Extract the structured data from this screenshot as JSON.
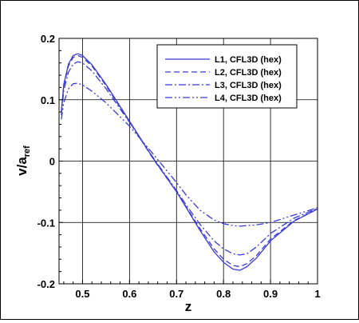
{
  "chart_data": {
    "type": "line",
    "xlabel": "z",
    "ylabel": {
      "main": "v/a",
      "sub": "ref"
    },
    "xlim": [
      0.45,
      1.0
    ],
    "ylim": [
      -0.2,
      0.2
    ],
    "xticks": [
      {
        "v": 0.5,
        "t": "0.5"
      },
      {
        "v": 0.6,
        "t": "0.6"
      },
      {
        "v": 0.7,
        "t": "0.7"
      },
      {
        "v": 0.8,
        "t": "0.8"
      },
      {
        "v": 0.9,
        "t": "0.9"
      },
      {
        "v": 1.0,
        "t": "1"
      }
    ],
    "yticks": [
      {
        "v": -0.2,
        "t": "-0.2"
      },
      {
        "v": -0.1,
        "t": "-0.1"
      },
      {
        "v": 0,
        "t": "0"
      },
      {
        "v": 0.1,
        "t": "0.1"
      },
      {
        "v": 0.2,
        "t": "0.2"
      }
    ],
    "grid": true,
    "legend_position": "top-right",
    "line_color": "#3b3bd6",
    "series": [
      {
        "name": "L1, CFL3D (hex)",
        "dash": "solid",
        "x": [
          0.455,
          0.46,
          0.47,
          0.48,
          0.49,
          0.5,
          0.52,
          0.55,
          0.6,
          0.65,
          0.7,
          0.72,
          0.75,
          0.78,
          0.8,
          0.82,
          0.835,
          0.85,
          0.87,
          0.9,
          0.95,
          1.0
        ],
        "y": [
          0.08,
          0.125,
          0.158,
          0.172,
          0.175,
          0.172,
          0.157,
          0.125,
          0.065,
          0.005,
          -0.05,
          -0.075,
          -0.113,
          -0.148,
          -0.165,
          -0.176,
          -0.178,
          -0.172,
          -0.158,
          -0.13,
          -0.098,
          -0.078
        ]
      },
      {
        "name": "L2, CFL3D (hex)",
        "dash": "dashed",
        "x": [
          0.455,
          0.46,
          0.47,
          0.48,
          0.49,
          0.5,
          0.52,
          0.55,
          0.6,
          0.65,
          0.7,
          0.72,
          0.75,
          0.78,
          0.8,
          0.82,
          0.835,
          0.85,
          0.87,
          0.9,
          0.95,
          1.0
        ],
        "y": [
          0.08,
          0.122,
          0.155,
          0.169,
          0.172,
          0.169,
          0.155,
          0.123,
          0.064,
          0.004,
          -0.05,
          -0.074,
          -0.11,
          -0.143,
          -0.16,
          -0.17,
          -0.172,
          -0.167,
          -0.154,
          -0.127,
          -0.097,
          -0.078
        ]
      },
      {
        "name": "L3, CFL3D (hex)",
        "dash": "dashdot",
        "x": [
          0.455,
          0.46,
          0.47,
          0.48,
          0.49,
          0.5,
          0.52,
          0.55,
          0.6,
          0.65,
          0.7,
          0.72,
          0.75,
          0.78,
          0.8,
          0.82,
          0.835,
          0.85,
          0.87,
          0.9,
          0.95,
          1.0
        ],
        "y": [
          0.075,
          0.115,
          0.145,
          0.158,
          0.162,
          0.16,
          0.147,
          0.118,
          0.063,
          0.006,
          -0.048,
          -0.071,
          -0.103,
          -0.13,
          -0.143,
          -0.151,
          -0.153,
          -0.151,
          -0.14,
          -0.118,
          -0.093,
          -0.077
        ]
      },
      {
        "name": "L4, CFL3D (hex)",
        "dash": "dashdotdot",
        "x": [
          0.455,
          0.46,
          0.47,
          0.48,
          0.49,
          0.5,
          0.52,
          0.55,
          0.6,
          0.65,
          0.7,
          0.72,
          0.75,
          0.78,
          0.8,
          0.82,
          0.835,
          0.85,
          0.87,
          0.9,
          0.95,
          1.0
        ],
        "y": [
          0.068,
          0.095,
          0.118,
          0.126,
          0.127,
          0.124,
          0.114,
          0.095,
          0.057,
          0.012,
          -0.035,
          -0.055,
          -0.08,
          -0.096,
          -0.102,
          -0.105,
          -0.106,
          -0.105,
          -0.104,
          -0.1,
          -0.088,
          -0.076
        ]
      }
    ]
  }
}
